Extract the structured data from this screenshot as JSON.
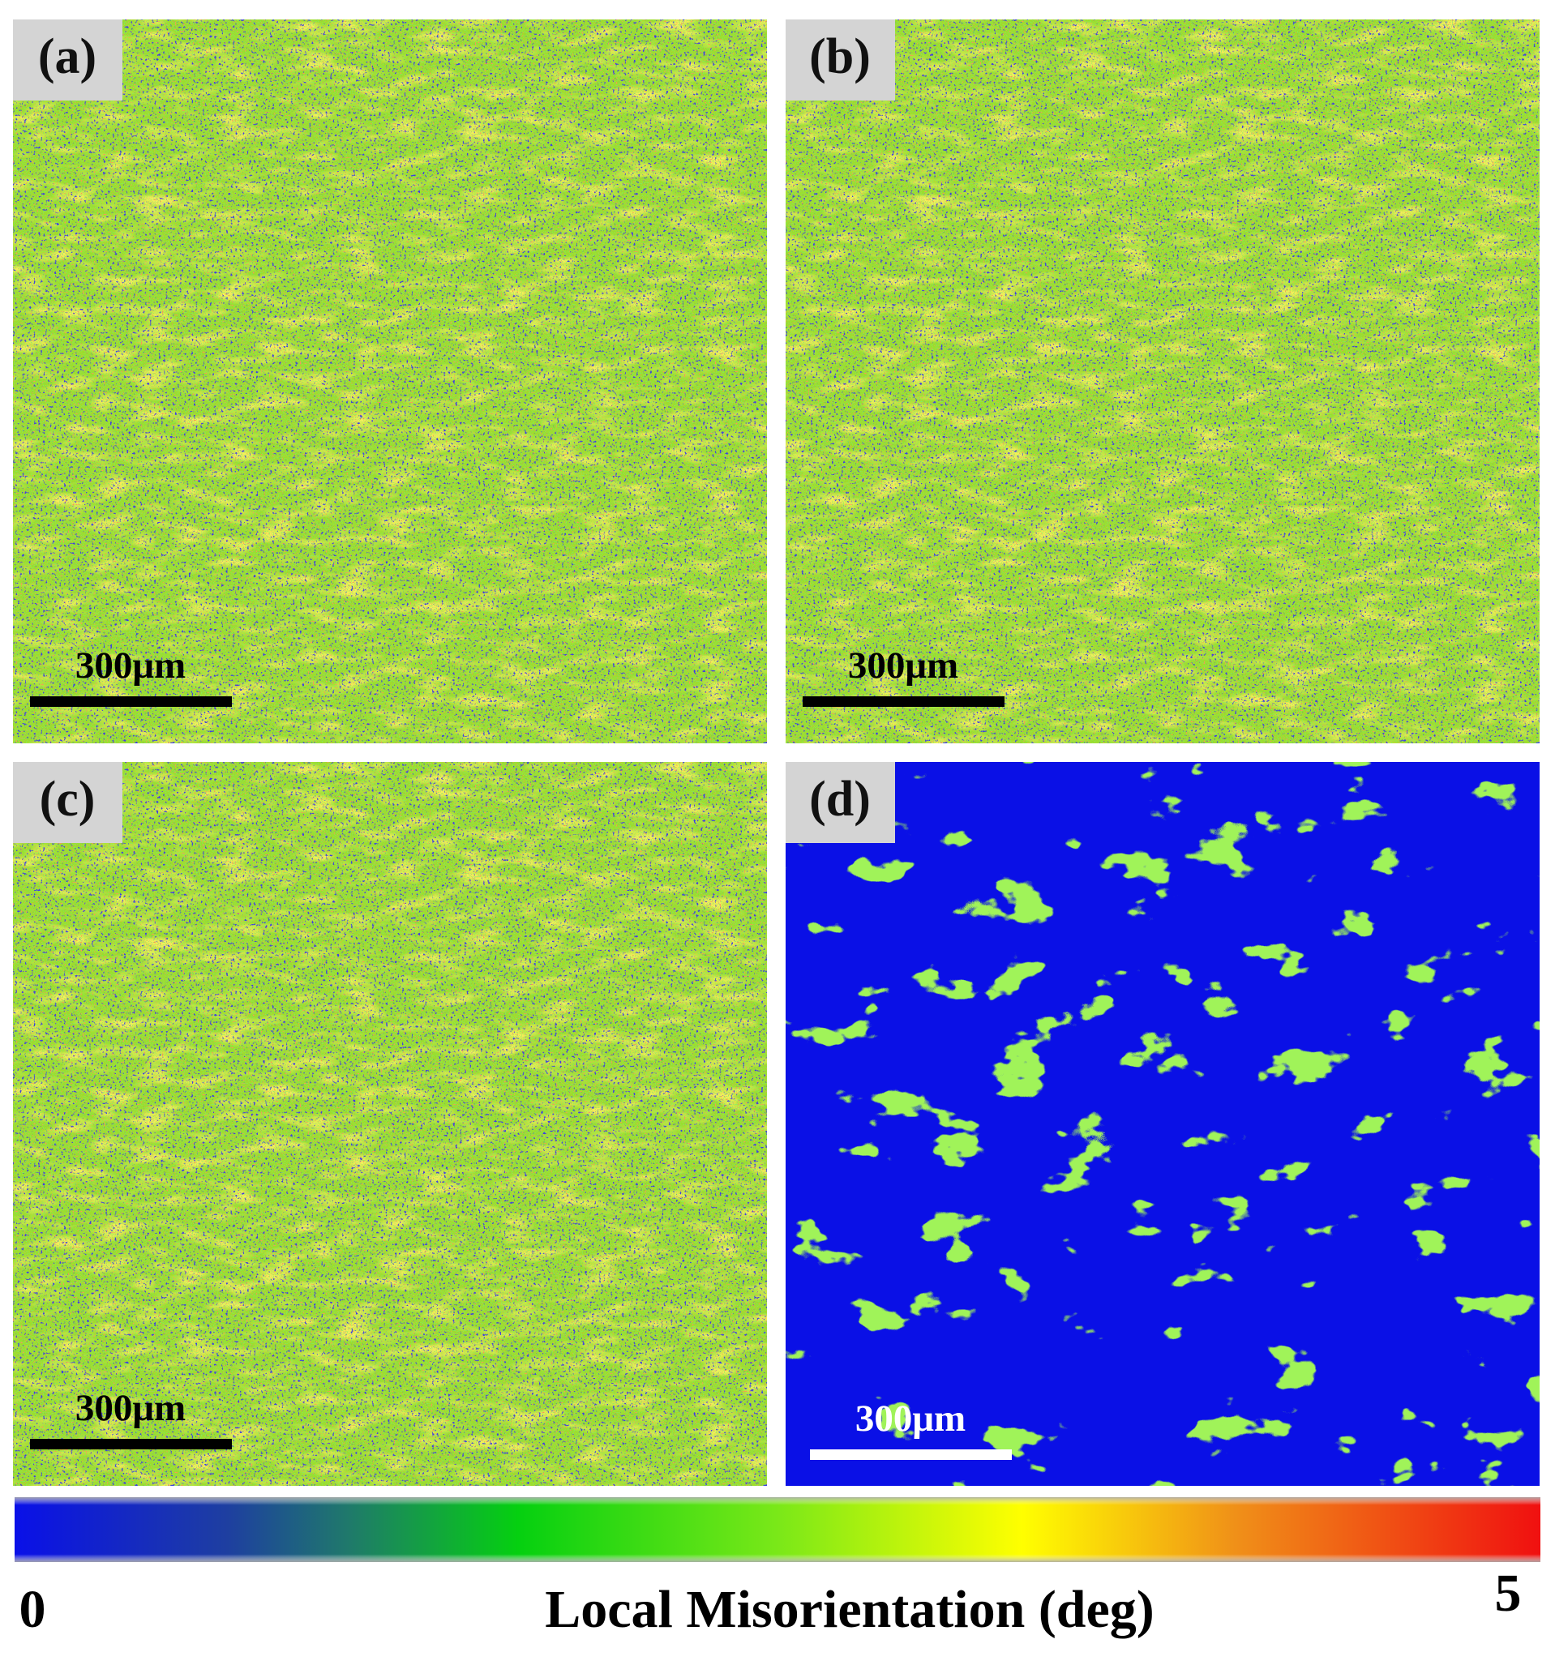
{
  "panels": [
    {
      "label": "(a)",
      "scale_bar": "300μm"
    },
    {
      "label": "(b)",
      "scale_bar": "300μm"
    },
    {
      "label": "(c)",
      "scale_bar": "300μm"
    },
    {
      "label": "(d)",
      "scale_bar": "300μm"
    }
  ],
  "colorbar": {
    "min": 0,
    "max": 5,
    "label": "Local Misorientation (deg)"
  }
}
